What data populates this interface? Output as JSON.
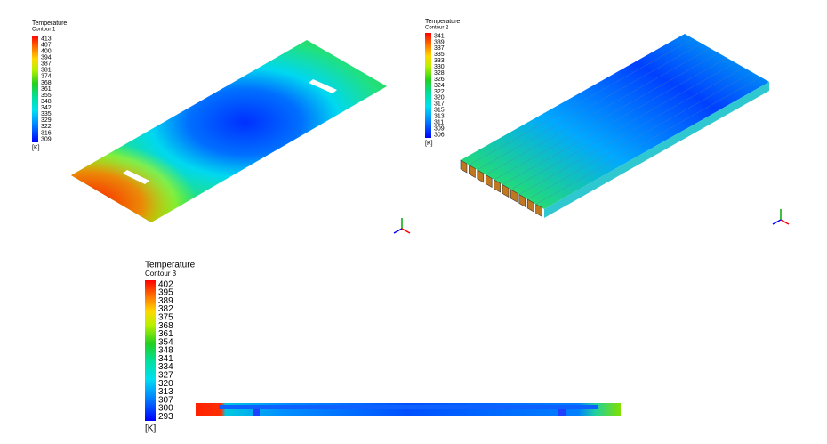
{
  "panels": [
    {
      "title": "Temperature",
      "subtitle": "Contour 1",
      "ticks": [
        413,
        407,
        400,
        394,
        387,
        381,
        374,
        368,
        361,
        355,
        348,
        342,
        335,
        329,
        322,
        316,
        309
      ],
      "unit": "[K]"
    },
    {
      "title": "Temperature",
      "subtitle": "Contour 2",
      "ticks": [
        341,
        339,
        337,
        335,
        333,
        330,
        328,
        326,
        324,
        322,
        320,
        317,
        315,
        313,
        311,
        309,
        306
      ],
      "unit": "[K]"
    },
    {
      "title": "Temperature",
      "subtitle": "Contour 3",
      "ticks": [
        402,
        395,
        389,
        382,
        375,
        368,
        361,
        354,
        348,
        341,
        334,
        327,
        320,
        313,
        307,
        300,
        293
      ],
      "unit": "[K]"
    }
  ]
}
